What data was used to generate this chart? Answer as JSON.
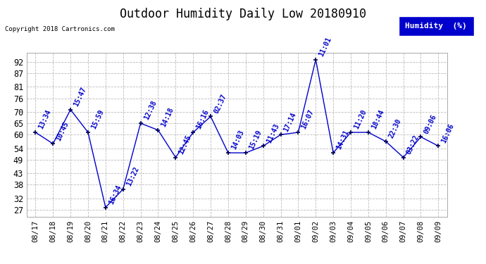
{
  "title": "Outdoor Humidity Daily Low 20180910",
  "copyright_text": "Copyright 2018 Cartronics.com",
  "legend_label": "Humidity  (%)",
  "x_labels": [
    "08/17",
    "08/18",
    "08/19",
    "08/20",
    "08/21",
    "08/22",
    "08/23",
    "08/24",
    "08/25",
    "08/26",
    "08/27",
    "08/28",
    "08/29",
    "08/30",
    "08/31",
    "09/01",
    "09/02",
    "09/03",
    "09/04",
    "09/05",
    "09/06",
    "09/07",
    "09/08",
    "09/09"
  ],
  "y_values": [
    61,
    56,
    71,
    61,
    28,
    36,
    65,
    62,
    50,
    61,
    68,
    52,
    52,
    55,
    60,
    61,
    93,
    52,
    61,
    61,
    57,
    50,
    59,
    55
  ],
  "point_labels": [
    "13:34",
    "10:45",
    "15:47",
    "15:59",
    "16:34",
    "13:22",
    "12:38",
    "14:18",
    "12:45",
    "16:16",
    "02:37",
    "14:03",
    "15:19",
    "11:43",
    "17:14",
    "16:07",
    "11:01",
    "14:31",
    "11:20",
    "18:44",
    "22:30",
    "03:22",
    "09:06",
    "16:06"
  ],
  "line_color": "#0000cc",
  "marker_color": "#000055",
  "label_color": "#0000cc",
  "background_color": "#ffffff",
  "grid_color": "#bbbbbb",
  "y_ticks": [
    27,
    32,
    38,
    43,
    49,
    54,
    60,
    65,
    70,
    76,
    81,
    87,
    92
  ],
  "ylim": [
    24,
    96
  ],
  "title_fontsize": 12,
  "label_fontsize": 7,
  "tick_fontsize": 8.5,
  "xtick_fontsize": 7.5,
  "legend_bg": "#0000cc",
  "legend_text_color": "#ffffff"
}
